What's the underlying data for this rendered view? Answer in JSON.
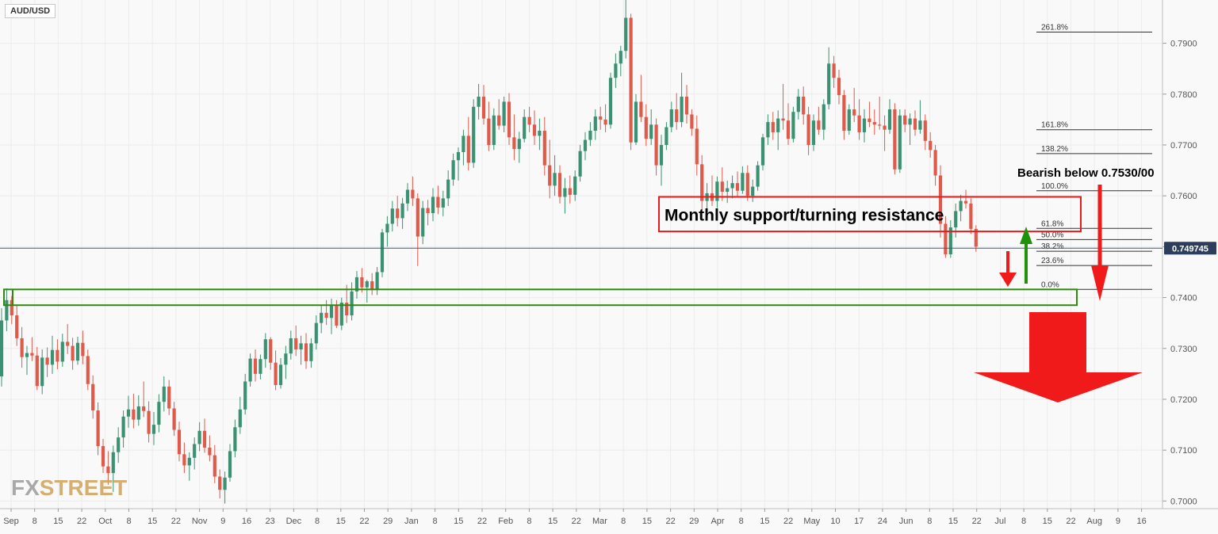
{
  "symbol": "AUD/USD",
  "watermark": {
    "part1": "FX",
    "part2": "STREET"
  },
  "colors": {
    "bull": "#3b9272",
    "bear": "#df5a4a",
    "grid": "#ececec",
    "background": "#f9f9f9",
    "axis_text": "#555555",
    "price_line": "#3a5a8a",
    "red_box": "#e81c1c",
    "green_box": "#2e8b0f",
    "arrow_red": "#f01a1a",
    "arrow_green": "#20920a"
  },
  "chart_data": {
    "type": "candlestick",
    "title": "",
    "y_axis": {
      "min": 0.6985,
      "max": 0.7985,
      "ticks": [
        "0.7900",
        "0.7800",
        "0.7700",
        "0.7600",
        "0.7500",
        "0.7400",
        "0.7300",
        "0.7200",
        "0.7100",
        "0.7000"
      ]
    },
    "x_axis": {
      "ticks": [
        "Sep",
        "8",
        "15",
        "22",
        "Oct",
        "8",
        "15",
        "22",
        "Nov",
        "9",
        "16",
        "23",
        "Dec",
        "8",
        "15",
        "22",
        "29",
        "Jan",
        "8",
        "15",
        "22",
        "Feb",
        "8",
        "15",
        "22",
        "Mar",
        "8",
        "15",
        "22",
        "29",
        "Apr",
        "8",
        "15",
        "22",
        "May",
        "10",
        "17",
        "24",
        "Jun",
        "8",
        "15",
        "22",
        "Jul",
        "8",
        "15",
        "22",
        "Aug",
        "9",
        "16"
      ]
    },
    "current_price": {
      "value": 0.7497,
      "label": "0.749745"
    },
    "fibonacci_levels": [
      {
        "label": "261.8%",
        "value": 0.7922
      },
      {
        "label": "161.8%",
        "value": 0.773
      },
      {
        "label": "138.2%",
        "value": 0.7683
      },
      {
        "label": "100.0%",
        "value": 0.761
      },
      {
        "label": "61.8%",
        "value": 0.7536
      },
      {
        "label": "50.0%",
        "value": 0.7514
      },
      {
        "label": "38.2%",
        "value": 0.7491
      },
      {
        "label": "23.6%",
        "value": 0.7463
      },
      {
        "label": "0.0%",
        "value": 0.7416
      }
    ],
    "zones": [
      {
        "name": "resistance-zone",
        "label": "Monthly support/turning resistance",
        "top": 0.7598,
        "bottom": 0.753,
        "color": "#e81c1c"
      },
      {
        "name": "support-zone",
        "label": "",
        "top": 0.7416,
        "bottom": 0.7385,
        "color": "#2e8b0f"
      }
    ],
    "annotations": [
      {
        "name": "bearish-text",
        "text": "Bearish below 0.7530/00"
      }
    ],
    "candles": [
      [
        0.7245,
        0.7379,
        0.7225,
        0.7355
      ],
      [
        0.7355,
        0.7418,
        0.7334,
        0.7395
      ],
      [
        0.7395,
        0.7403,
        0.7348,
        0.7365
      ],
      [
        0.7365,
        0.7385,
        0.7305,
        0.732
      ],
      [
        0.732,
        0.7342,
        0.7262,
        0.7283
      ],
      [
        0.7283,
        0.7305,
        0.7248,
        0.7291
      ],
      [
        0.7291,
        0.7322,
        0.7275,
        0.7286
      ],
      [
        0.7286,
        0.7303,
        0.7218,
        0.7226
      ],
      [
        0.7226,
        0.7298,
        0.721,
        0.7282
      ],
      [
        0.7282,
        0.7302,
        0.7244,
        0.7268
      ],
      [
        0.7268,
        0.7325,
        0.725,
        0.7297
      ],
      [
        0.7297,
        0.7318,
        0.7259,
        0.7274
      ],
      [
        0.7274,
        0.7329,
        0.7264,
        0.7313
      ],
      [
        0.7313,
        0.7348,
        0.7289,
        0.7305
      ],
      [
        0.7305,
        0.7321,
        0.7258,
        0.7276
      ],
      [
        0.7276,
        0.7323,
        0.7268,
        0.7311
      ],
      [
        0.7311,
        0.7335,
        0.7269,
        0.7285
      ],
      [
        0.7285,
        0.7298,
        0.7218,
        0.723
      ],
      [
        0.723,
        0.7247,
        0.7162,
        0.7178
      ],
      [
        0.7178,
        0.7194,
        0.709,
        0.7108
      ],
      [
        0.7108,
        0.7122,
        0.7055,
        0.7068
      ],
      [
        0.7068,
        0.7098,
        0.7032,
        0.7055
      ],
      [
        0.7055,
        0.7109,
        0.7018,
        0.7096
      ],
      [
        0.7096,
        0.7145,
        0.7075,
        0.7125
      ],
      [
        0.7125,
        0.7178,
        0.7105,
        0.7166
      ],
      [
        0.7166,
        0.7207,
        0.7144,
        0.718
      ],
      [
        0.718,
        0.7211,
        0.7143,
        0.716
      ],
      [
        0.716,
        0.7208,
        0.7148,
        0.7186
      ],
      [
        0.7186,
        0.7235,
        0.7165,
        0.7177
      ],
      [
        0.7177,
        0.7196,
        0.7115,
        0.7132
      ],
      [
        0.7132,
        0.7175,
        0.711,
        0.715
      ],
      [
        0.715,
        0.721,
        0.7135,
        0.7195
      ],
      [
        0.7195,
        0.7245,
        0.7176,
        0.7225
      ],
      [
        0.7225,
        0.7238,
        0.7169,
        0.7182
      ],
      [
        0.7182,
        0.7195,
        0.7128,
        0.714
      ],
      [
        0.714,
        0.7156,
        0.7078,
        0.7092
      ],
      [
        0.7092,
        0.7115,
        0.7055,
        0.707
      ],
      [
        0.707,
        0.7096,
        0.704,
        0.7085
      ],
      [
        0.7085,
        0.7125,
        0.7062,
        0.7112
      ],
      [
        0.7112,
        0.7155,
        0.7098,
        0.7138
      ],
      [
        0.7138,
        0.7162,
        0.7095,
        0.7105
      ],
      [
        0.7105,
        0.7129,
        0.7078,
        0.709
      ],
      [
        0.709,
        0.711,
        0.7035,
        0.7048
      ],
      [
        0.7048,
        0.7062,
        0.7005,
        0.7022
      ],
      [
        0.7022,
        0.7058,
        0.6995,
        0.7046
      ],
      [
        0.7046,
        0.7112,
        0.7038,
        0.7098
      ],
      [
        0.7098,
        0.716,
        0.7086,
        0.7145
      ],
      [
        0.7145,
        0.7205,
        0.7132,
        0.718
      ],
      [
        0.718,
        0.725,
        0.717,
        0.7235
      ],
      [
        0.7235,
        0.729,
        0.7225,
        0.728
      ],
      [
        0.728,
        0.7298,
        0.7235,
        0.725
      ],
      [
        0.725,
        0.7288,
        0.7239,
        0.7279
      ],
      [
        0.7279,
        0.733,
        0.7262,
        0.7318
      ],
      [
        0.7318,
        0.7322,
        0.7258,
        0.7272
      ],
      [
        0.7272,
        0.7296,
        0.7218,
        0.7228
      ],
      [
        0.7228,
        0.7281,
        0.7221,
        0.7268
      ],
      [
        0.7268,
        0.7305,
        0.724,
        0.729
      ],
      [
        0.729,
        0.7335,
        0.7278,
        0.732
      ],
      [
        0.732,
        0.7345,
        0.7285,
        0.7298
      ],
      [
        0.7298,
        0.7325,
        0.7268,
        0.731
      ],
      [
        0.731,
        0.733,
        0.726,
        0.7275
      ],
      [
        0.7275,
        0.732,
        0.7262,
        0.731
      ],
      [
        0.731,
        0.7365,
        0.7298,
        0.735
      ],
      [
        0.735,
        0.7385,
        0.733,
        0.737
      ],
      [
        0.737,
        0.7395,
        0.7346,
        0.736
      ],
      [
        0.736,
        0.7398,
        0.7328,
        0.7385
      ],
      [
        0.7385,
        0.7395,
        0.734,
        0.7345
      ],
      [
        0.7345,
        0.74,
        0.7336,
        0.739
      ],
      [
        0.739,
        0.7425,
        0.735,
        0.7365
      ],
      [
        0.7365,
        0.743,
        0.7355,
        0.7412
      ],
      [
        0.7412,
        0.7452,
        0.7398,
        0.744
      ],
      [
        0.744,
        0.7458,
        0.741,
        0.742
      ],
      [
        0.742,
        0.7435,
        0.739,
        0.7432
      ],
      [
        0.7432,
        0.7448,
        0.7405,
        0.7416
      ],
      [
        0.7416,
        0.746,
        0.7405,
        0.745
      ],
      [
        0.745,
        0.7535,
        0.744,
        0.7528
      ],
      [
        0.7528,
        0.756,
        0.75,
        0.7545
      ],
      [
        0.7545,
        0.759,
        0.753,
        0.7575
      ],
      [
        0.7575,
        0.76,
        0.754,
        0.7556
      ],
      [
        0.7556,
        0.7596,
        0.7535,
        0.7585
      ],
      [
        0.7585,
        0.7625,
        0.757,
        0.7612
      ],
      [
        0.7612,
        0.7638,
        0.758,
        0.7595
      ],
      [
        0.7595,
        0.7605,
        0.7462,
        0.752
      ],
      [
        0.752,
        0.759,
        0.7505,
        0.7576
      ],
      [
        0.7576,
        0.7592,
        0.7542,
        0.7566
      ],
      [
        0.7566,
        0.7615,
        0.755,
        0.7598
      ],
      [
        0.7598,
        0.762,
        0.7564,
        0.7577
      ],
      [
        0.7577,
        0.761,
        0.756,
        0.7595
      ],
      [
        0.7595,
        0.765,
        0.758,
        0.7632
      ],
      [
        0.7632,
        0.7683,
        0.762,
        0.767
      ],
      [
        0.767,
        0.7695,
        0.763,
        0.7686
      ],
      [
        0.7686,
        0.773,
        0.766,
        0.7718
      ],
      [
        0.7718,
        0.7755,
        0.765,
        0.7665
      ],
      [
        0.7665,
        0.779,
        0.7655,
        0.7775
      ],
      [
        0.7775,
        0.782,
        0.775,
        0.7795
      ],
      [
        0.7795,
        0.7818,
        0.774,
        0.7752
      ],
      [
        0.7752,
        0.7785,
        0.7688,
        0.77
      ],
      [
        0.77,
        0.7772,
        0.769,
        0.7758
      ],
      [
        0.7758,
        0.779,
        0.773,
        0.7738
      ],
      [
        0.7738,
        0.7795,
        0.7725,
        0.7785
      ],
      [
        0.7785,
        0.7802,
        0.77,
        0.7715
      ],
      [
        0.7715,
        0.776,
        0.767,
        0.7692
      ],
      [
        0.7692,
        0.7726,
        0.7665,
        0.7712
      ],
      [
        0.7712,
        0.777,
        0.7705,
        0.7755
      ],
      [
        0.7755,
        0.7775,
        0.7725,
        0.774
      ],
      [
        0.774,
        0.7768,
        0.77,
        0.7718
      ],
      [
        0.7718,
        0.7752,
        0.769,
        0.7728
      ],
      [
        0.7728,
        0.7755,
        0.764,
        0.766
      ],
      [
        0.766,
        0.771,
        0.7595,
        0.762
      ],
      [
        0.762,
        0.768,
        0.76,
        0.7645
      ],
      [
        0.7645,
        0.766,
        0.7585,
        0.7598
      ],
      [
        0.7598,
        0.7635,
        0.7565,
        0.7615
      ],
      [
        0.7615,
        0.764,
        0.7585,
        0.7602
      ],
      [
        0.7602,
        0.765,
        0.759,
        0.7638
      ],
      [
        0.7638,
        0.77,
        0.7628,
        0.7688
      ],
      [
        0.7688,
        0.7725,
        0.767,
        0.771
      ],
      [
        0.771,
        0.7745,
        0.7698,
        0.7728
      ],
      [
        0.7728,
        0.777,
        0.771,
        0.7756
      ],
      [
        0.7756,
        0.7775,
        0.773,
        0.775
      ],
      [
        0.775,
        0.778,
        0.7725,
        0.774
      ],
      [
        0.774,
        0.7842,
        0.7732,
        0.7832
      ],
      [
        0.7832,
        0.788,
        0.7812,
        0.786
      ],
      [
        0.786,
        0.7895,
        0.7835,
        0.7885
      ],
      [
        0.7885,
        0.7985,
        0.787,
        0.795
      ],
      [
        0.795,
        0.7958,
        0.769,
        0.7705
      ],
      [
        0.7705,
        0.78,
        0.77,
        0.7785
      ],
      [
        0.7785,
        0.7838,
        0.7745,
        0.7755
      ],
      [
        0.7755,
        0.778,
        0.7698,
        0.7712
      ],
      [
        0.7712,
        0.777,
        0.77,
        0.774
      ],
      [
        0.774,
        0.7752,
        0.764,
        0.766
      ],
      [
        0.766,
        0.772,
        0.762,
        0.77
      ],
      [
        0.77,
        0.7745,
        0.769,
        0.7735
      ],
      [
        0.7735,
        0.7785,
        0.7725,
        0.777
      ],
      [
        0.777,
        0.7802,
        0.773,
        0.7745
      ],
      [
        0.7745,
        0.7842,
        0.7735,
        0.7795
      ],
      [
        0.7795,
        0.7818,
        0.7742,
        0.776
      ],
      [
        0.776,
        0.777,
        0.7718,
        0.7732
      ],
      [
        0.7732,
        0.7758,
        0.764,
        0.7662
      ],
      [
        0.7662,
        0.768,
        0.757,
        0.759
      ],
      [
        0.759,
        0.7625,
        0.7568,
        0.7605
      ],
      [
        0.7605,
        0.764,
        0.758,
        0.759
      ],
      [
        0.759,
        0.7638,
        0.7576,
        0.7628
      ],
      [
        0.7628,
        0.7656,
        0.759,
        0.7608
      ],
      [
        0.7608,
        0.763,
        0.7586,
        0.7615
      ],
      [
        0.7615,
        0.764,
        0.7595,
        0.7625
      ],
      [
        0.7625,
        0.7648,
        0.7598,
        0.761
      ],
      [
        0.761,
        0.7658,
        0.7604,
        0.7645
      ],
      [
        0.7645,
        0.766,
        0.759,
        0.76
      ],
      [
        0.76,
        0.7632,
        0.7588,
        0.7618
      ],
      [
        0.7618,
        0.7668,
        0.761,
        0.766
      ],
      [
        0.766,
        0.7722,
        0.765,
        0.7715
      ],
      [
        0.7715,
        0.776,
        0.77,
        0.7745
      ],
      [
        0.7745,
        0.7765,
        0.771,
        0.7725
      ],
      [
        0.7725,
        0.7768,
        0.769,
        0.7752
      ],
      [
        0.7752,
        0.782,
        0.773,
        0.7748
      ],
      [
        0.7748,
        0.7782,
        0.77,
        0.7712
      ],
      [
        0.7712,
        0.7775,
        0.7705,
        0.7765
      ],
      [
        0.7765,
        0.781,
        0.775,
        0.7795
      ],
      [
        0.7795,
        0.7815,
        0.774,
        0.776
      ],
      [
        0.776,
        0.7775,
        0.768,
        0.77
      ],
      [
        0.77,
        0.776,
        0.7688,
        0.7748
      ],
      [
        0.7748,
        0.7775,
        0.772,
        0.773
      ],
      [
        0.773,
        0.779,
        0.771,
        0.778
      ],
      [
        0.778,
        0.7892,
        0.777,
        0.786
      ],
      [
        0.786,
        0.7875,
        0.7812,
        0.7832
      ],
      [
        0.7832,
        0.7848,
        0.778,
        0.7798
      ],
      [
        0.7798,
        0.7808,
        0.771,
        0.7728
      ],
      [
        0.7728,
        0.778,
        0.772,
        0.777
      ],
      [
        0.777,
        0.7812,
        0.7745,
        0.7758
      ],
      [
        0.7758,
        0.779,
        0.771,
        0.7725
      ],
      [
        0.7725,
        0.777,
        0.7705,
        0.7752
      ],
      [
        0.7752,
        0.7785,
        0.7735,
        0.7745
      ],
      [
        0.7745,
        0.777,
        0.772,
        0.774
      ],
      [
        0.774,
        0.7795,
        0.773,
        0.7738
      ],
      [
        0.7738,
        0.7758,
        0.7688,
        0.773
      ],
      [
        0.773,
        0.779,
        0.7722,
        0.777
      ],
      [
        0.777,
        0.7782,
        0.7642,
        0.7652
      ],
      [
        0.7652,
        0.777,
        0.7645,
        0.7758
      ],
      [
        0.7758,
        0.777,
        0.7725,
        0.774
      ],
      [
        0.774,
        0.7762,
        0.77,
        0.7752
      ],
      [
        0.7752,
        0.7768,
        0.7718,
        0.773
      ],
      [
        0.773,
        0.7788,
        0.7722,
        0.7748
      ],
      [
        0.7748,
        0.776,
        0.769,
        0.7708
      ],
      [
        0.7708,
        0.7725,
        0.7675,
        0.769
      ],
      [
        0.769,
        0.77,
        0.762,
        0.764
      ],
      [
        0.764,
        0.766,
        0.7518,
        0.7545
      ],
      [
        0.7545,
        0.756,
        0.7478,
        0.7485
      ],
      [
        0.7485,
        0.7552,
        0.7478,
        0.7538
      ],
      [
        0.7538,
        0.7585,
        0.7518,
        0.757
      ],
      [
        0.757,
        0.7602,
        0.755,
        0.759
      ],
      [
        0.759,
        0.7612,
        0.7575,
        0.7585
      ],
      [
        0.7585,
        0.7595,
        0.7525,
        0.7535
      ],
      [
        0.7535,
        0.7542,
        0.749,
        0.75
      ]
    ]
  }
}
